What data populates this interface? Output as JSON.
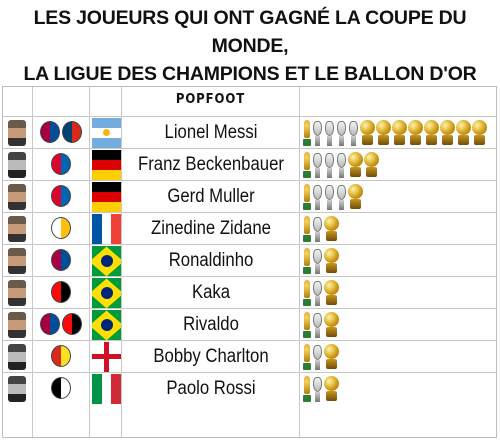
{
  "title": {
    "line1": "LES JOUEURS QUI ONT GAGNÉ LA COUPE DU MONDE,",
    "line2": "LA LIGUE DES CHAMPIONS ET LE BALLON D'OR"
  },
  "logo_text": "POPFOOT",
  "colors": {
    "world_cup": "#d4a017",
    "champions_league": "#b8b8b8",
    "ballon_dor": "#d4a017"
  },
  "players": [
    {
      "name": "Lionel Messi",
      "photo": "color",
      "clubs": [
        {
          "icon": "fc-barcelona-crest-icon",
          "c1": "#a50044",
          "c2": "#004d98"
        },
        {
          "icon": "psg-crest-icon",
          "c1": "#004170",
          "c2": "#da291c"
        }
      ],
      "flag": "argentina",
      "trophies": {
        "world_cup": 1,
        "champions_league": 4,
        "ballon_dor": 8
      }
    },
    {
      "name": "Franz Beckenbauer",
      "photo": "bw",
      "clubs": [
        {
          "icon": "bayern-munich-crest-icon",
          "c1": "#dc052d",
          "c2": "#0066b2"
        }
      ],
      "flag": "germany",
      "trophies": {
        "world_cup": 1,
        "champions_league": 3,
        "ballon_dor": 2
      }
    },
    {
      "name": "Gerd Muller",
      "photo": "color",
      "clubs": [
        {
          "icon": "bayern-munich-crest-icon",
          "c1": "#dc052d",
          "c2": "#0066b2"
        }
      ],
      "flag": "germany",
      "trophies": {
        "world_cup": 1,
        "champions_league": 3,
        "ballon_dor": 1
      }
    },
    {
      "name": "Zinedine Zidane",
      "photo": "color",
      "clubs": [
        {
          "icon": "real-madrid-crest-icon",
          "c1": "#ffffff",
          "c2": "#febe10"
        }
      ],
      "flag": "france",
      "trophies": {
        "world_cup": 1,
        "champions_league": 1,
        "ballon_dor": 1
      }
    },
    {
      "name": "Ronaldinho",
      "photo": "color",
      "clubs": [
        {
          "icon": "fc-barcelona-crest-icon",
          "c1": "#a50044",
          "c2": "#004d98"
        }
      ],
      "flag": "brazil",
      "trophies": {
        "world_cup": 1,
        "champions_league": 1,
        "ballon_dor": 1
      }
    },
    {
      "name": "Kaka",
      "photo": "color",
      "clubs": [
        {
          "icon": "ac-milan-crest-icon",
          "c1": "#fb090b",
          "c2": "#000000"
        }
      ],
      "flag": "brazil",
      "trophies": {
        "world_cup": 1,
        "champions_league": 1,
        "ballon_dor": 1
      }
    },
    {
      "name": "Rivaldo",
      "photo": "color",
      "clubs": [
        {
          "icon": "fc-barcelona-crest-icon",
          "c1": "#a50044",
          "c2": "#004d98"
        },
        {
          "icon": "ac-milan-crest-icon",
          "c1": "#fb090b",
          "c2": "#000000"
        }
      ],
      "flag": "brazil",
      "trophies": {
        "world_cup": 1,
        "champions_league": 1,
        "ballon_dor": 1
      }
    },
    {
      "name": "Bobby Charlton",
      "photo": "bw",
      "clubs": [
        {
          "icon": "manchester-united-crest-icon",
          "c1": "#da291c",
          "c2": "#fbe122"
        }
      ],
      "flag": "england",
      "trophies": {
        "world_cup": 1,
        "champions_league": 1,
        "ballon_dor": 1
      }
    },
    {
      "name": "Paolo Rossi",
      "photo": "bw",
      "clubs": [
        {
          "icon": "juventus-crest-icon",
          "c1": "#000000",
          "c2": "#ffffff"
        }
      ],
      "flag": "italy",
      "trophies": {
        "world_cup": 1,
        "champions_league": 1,
        "ballon_dor": 1
      }
    }
  ]
}
